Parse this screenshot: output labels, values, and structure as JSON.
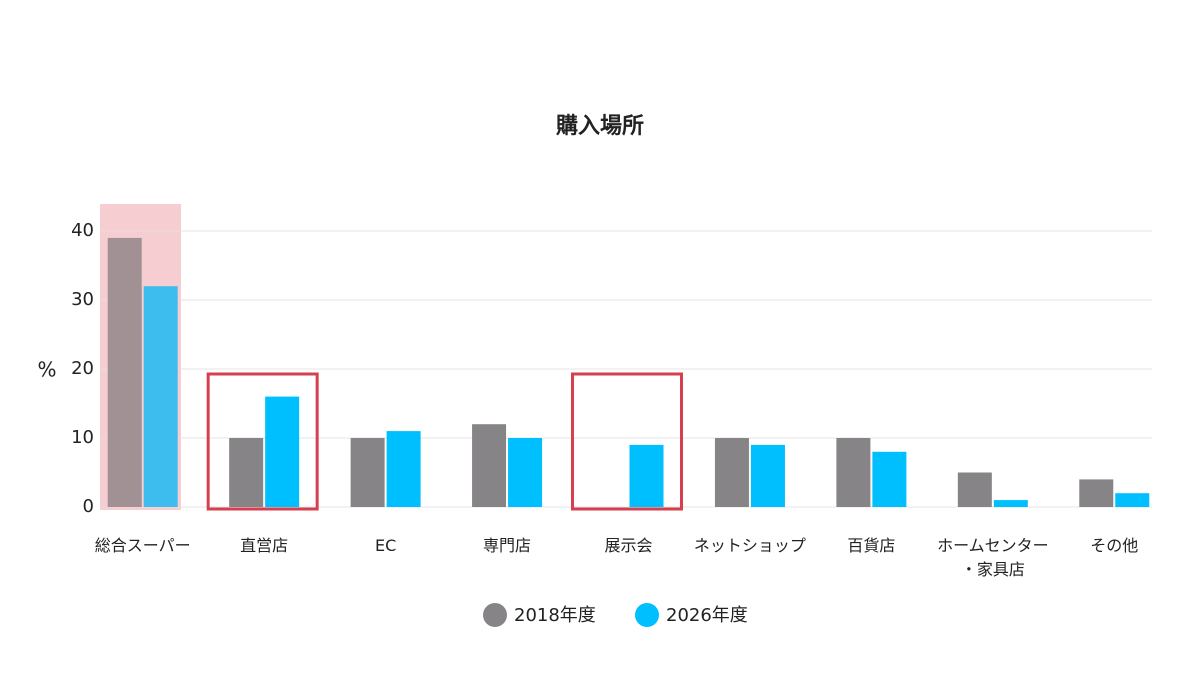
{
  "chart_data": {
    "type": "bar",
    "title": "購入場所",
    "y_label": "%",
    "categories": [
      "総合スーパー",
      "直営店",
      "EC",
      "専門店",
      "展示会",
      "ネットショップ",
      "百貨店",
      "ホームセンター・家具店",
      "その他"
    ],
    "series": [
      {
        "name": "2018年度",
        "color": "#868487",
        "values": [
          39,
          10,
          10,
          12,
          0,
          10,
          10,
          5,
          4
        ]
      },
      {
        "name": "2026年度",
        "color": "#00bfff",
        "values": [
          32,
          16,
          11,
          10,
          9,
          9,
          8,
          1,
          2
        ]
      }
    ],
    "ylim": [
      0,
      40
    ],
    "yticks": [
      0,
      10,
      20,
      30,
      40
    ],
    "grid": true
  }
}
